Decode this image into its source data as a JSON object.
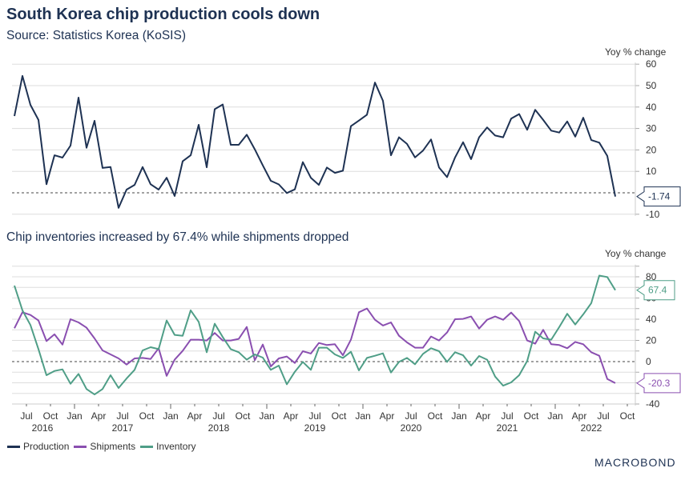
{
  "header": {
    "title": "South Korea chip production cools down",
    "source": "Source: Statistics Korea (KoSIS)"
  },
  "brand": "MACROBOND",
  "colors": {
    "production": "#1e3253",
    "shipments": "#8a4fb0",
    "inventory": "#4f9e87",
    "grid": "#dddddd",
    "axis_text": "#333333"
  },
  "chart_data": [
    {
      "type": "line",
      "title": "South Korea chip production cools down",
      "subtitle": "Source: Statistics Korea (KoSIS)",
      "ylabel": "Yoy % change",
      "ylim": [
        -10,
        60
      ],
      "yticks": [
        60,
        50,
        40,
        30,
        20,
        10,
        -10
      ],
      "grid": true,
      "reference_line": 0,
      "x_start": "2016-06",
      "x_end": "2022-09",
      "series": [
        {
          "name": "Production",
          "color": "#1e3253",
          "last_value_label": "-1.74",
          "values": [
            35.8,
            54.5,
            41,
            34,
            4,
            17.5,
            16.4,
            22,
            44.4,
            21,
            33.6,
            11.6,
            12,
            -7,
            1.5,
            3.7,
            12,
            4,
            1.5,
            7,
            -1.5,
            14.7,
            17.5,
            31.7,
            11.9,
            39,
            41.2,
            22.4,
            22.4,
            27.1,
            20.3,
            12.8,
            5.6,
            3.9,
            -0.1,
            1.6,
            14.3,
            7,
            3.7,
            11.8,
            9.3,
            10.3,
            31.1,
            33.7,
            36.4,
            51.4,
            42.9,
            17.5,
            25.9,
            22.8,
            16.5,
            19.7,
            24.9,
            11.8,
            7.3,
            16.5,
            23.6,
            15.7,
            25.9,
            30.5,
            26.7,
            25.9,
            34.6,
            36.7,
            29.4,
            38.7,
            34,
            29,
            28.1,
            33.3,
            26.2,
            35,
            24.6,
            23.4,
            17.2,
            -1.74
          ]
        }
      ]
    },
    {
      "type": "line",
      "title": "Chip inventories increased by 67.4% while shipments dropped",
      "ylabel": "Yoy % change",
      "ylim": [
        -40,
        90
      ],
      "yticks": [
        80,
        60,
        40,
        20,
        0,
        -20,
        -40
      ],
      "grid": true,
      "reference_line": 0,
      "x_start": "2016-06",
      "x_end": "2022-09",
      "x_tick_labels": [
        "Jul",
        "Oct",
        "Jan",
        "Apr",
        "Jul",
        "Oct",
        "Jan",
        "Apr",
        "Jul",
        "Oct",
        "Jan",
        "Apr",
        "Jul",
        "Oct",
        "Jan",
        "Apr",
        "Jul",
        "Oct",
        "Jan",
        "Apr",
        "Jul",
        "Oct",
        "Jan",
        "Apr",
        "Jul",
        "Oct"
      ],
      "x_year_labels": [
        "2016",
        "2017",
        "2018",
        "2019",
        "2020",
        "2021",
        "2022"
      ],
      "legend": [
        "Production",
        "Shipments",
        "Inventory"
      ],
      "legend_position": "bottom-left",
      "series": [
        {
          "name": "Shipments",
          "color": "#8a4fb0",
          "last_value_label": "-20.3",
          "values": [
            31.5,
            46.6,
            44,
            38.8,
            19.4,
            25.7,
            16.1,
            40,
            37,
            32,
            21.9,
            10.6,
            6.8,
            3,
            -2.8,
            3,
            3.5,
            2.5,
            12.6,
            -13.4,
            1.8,
            10.1,
            20.7,
            20.7,
            19.9,
            27,
            19.9,
            19.9,
            21.4,
            32.7,
            1.3,
            16.1,
            -4.5,
            3,
            4.8,
            -1.3,
            9.8,
            7.6,
            17.6,
            15.6,
            16.4,
            6,
            20.7,
            46.6,
            50.1,
            39.5,
            34,
            37,
            24.4,
            18.1,
            13.1,
            13.1,
            23.7,
            19.9,
            27.5,
            40,
            40.3,
            42.6,
            31.2,
            39.5,
            42.6,
            39.5,
            46.3,
            38.3,
            19.9,
            16.9,
            30,
            16.4,
            15.6,
            12.6,
            18.6,
            16.4,
            8.8,
            5.5,
            -16.4,
            -20.3
          ]
        },
        {
          "name": "Inventory",
          "color": "#4f9e87",
          "last_value_label": "67.4",
          "values": [
            71.7,
            48.4,
            34.5,
            11.8,
            -12.8,
            -8.8,
            -7.3,
            -20.9,
            -11.6,
            -25.9,
            -31,
            -25.9,
            -12.8,
            -24.9,
            -15.9,
            -7.8,
            10.6,
            13.6,
            11.8,
            38.8,
            25.2,
            24.4,
            48.4,
            37.5,
            8.8,
            35.8,
            23.2,
            11.8,
            8.8,
            1.8,
            6.8,
            3.8,
            -7.8,
            -3.8,
            -21.4,
            -9.6,
            -0.3,
            -7.8,
            13.1,
            13.1,
            6.8,
            3.5,
            9.3,
            -8.3,
            3.5,
            5.5,
            7.8,
            -10.3,
            -0.3,
            3.5,
            -2.5,
            7.3,
            12.6,
            9.8,
            -0.3,
            8.8,
            6,
            -3.8,
            5.3,
            1.8,
            -14.1,
            -22.7,
            -19.6,
            -12.8,
            0.5,
            28.2,
            21.9,
            20.7,
            32.5,
            45.1,
            35,
            44.6,
            55.2,
            81.1,
            79.8,
            67.4
          ]
        }
      ]
    }
  ],
  "labels": {
    "top_unit": "Yoy % change",
    "bottom_subtitle": "Chip inventories increased by 67.4% while shipments dropped",
    "bottom_unit": "Yoy % change"
  }
}
